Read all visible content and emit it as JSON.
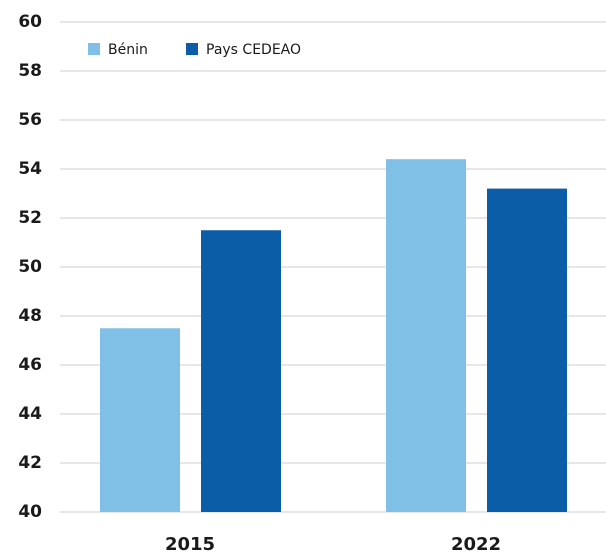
{
  "chart_data": {
    "type": "bar",
    "categories": [
      "2015",
      "2022"
    ],
    "series": [
      {
        "name": "Bénin",
        "color": "#80c0e7",
        "values": [
          47.5,
          54.4
        ]
      },
      {
        "name": "Pays CEDEAO",
        "color": "#0b5da8",
        "values": [
          51.5,
          53.2
        ]
      }
    ],
    "ylim": [
      40,
      60
    ],
    "yticks": [
      40,
      42,
      44,
      46,
      48,
      50,
      52,
      54,
      56,
      58,
      60
    ],
    "grid": true,
    "legend": "top-left"
  }
}
